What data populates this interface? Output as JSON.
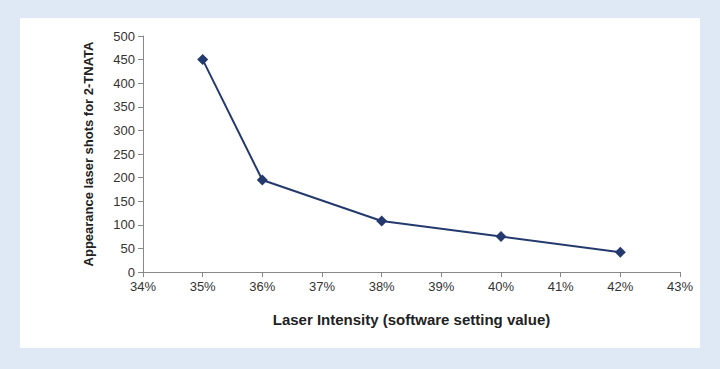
{
  "chart_data": {
    "type": "line",
    "x_label": "Laser Intensity (software setting value)",
    "y_label": "Appearance laser shots for 2-TNATA",
    "x": [
      35,
      36,
      38,
      40,
      42
    ],
    "values": [
      450,
      195,
      108,
      75,
      42
    ],
    "color": "#243a6e",
    "marker": "diamond",
    "xlim": [
      34,
      43
    ],
    "xticks": [
      {
        "value": 34,
        "label": "34%"
      },
      {
        "value": 35,
        "label": "35%"
      },
      {
        "value": 36,
        "label": "36%"
      },
      {
        "value": 37,
        "label": "37%"
      },
      {
        "value": 38,
        "label": "38%"
      },
      {
        "value": 39,
        "label": "39%"
      },
      {
        "value": 40,
        "label": "40%"
      },
      {
        "value": 41,
        "label": "41%"
      },
      {
        "value": 42,
        "label": "42%"
      },
      {
        "value": 43,
        "label": "43%"
      }
    ],
    "ylim": [
      0,
      500
    ],
    "yticks": [
      0,
      50,
      100,
      150,
      200,
      250,
      300,
      350,
      400,
      450,
      500
    ],
    "grid": false
  }
}
